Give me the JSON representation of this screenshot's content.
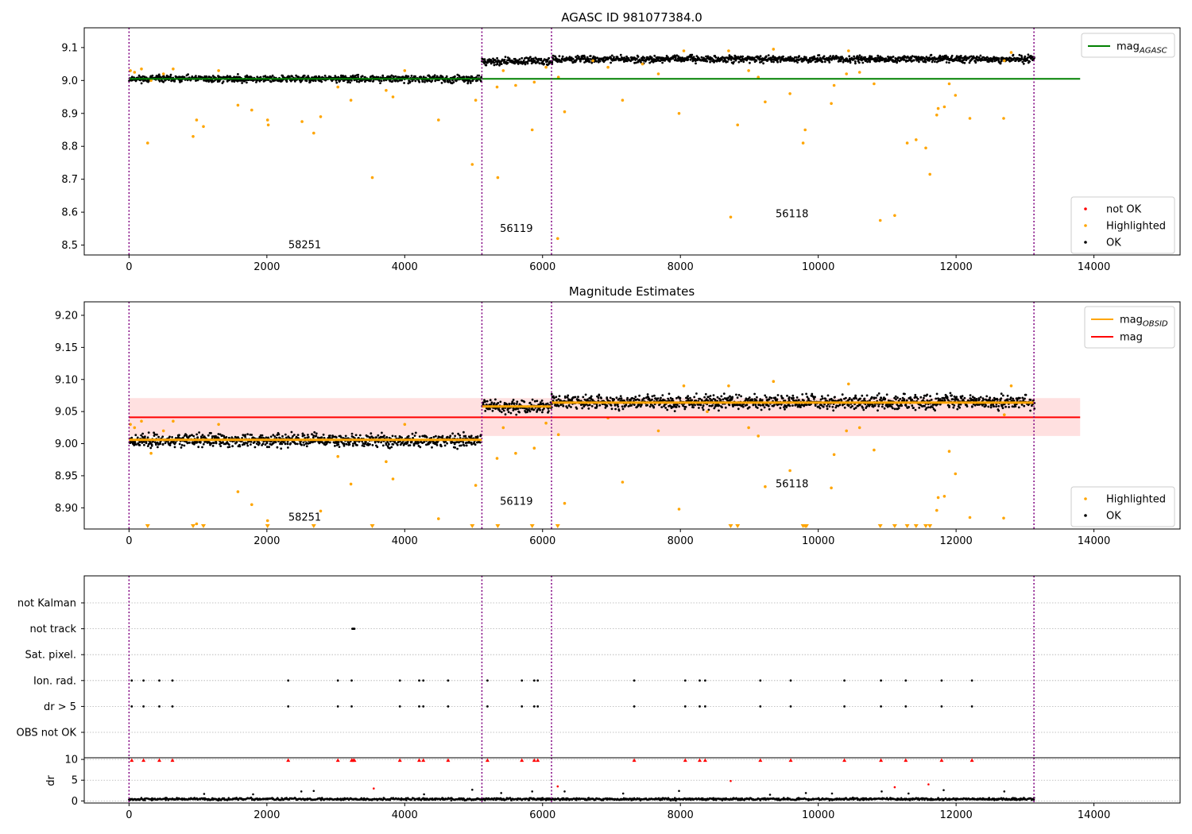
{
  "colors": {
    "ok": "#000000",
    "not_ok": "#ff0000",
    "highlighted": "#ffa500",
    "mag_agasc": "#008000",
    "mag_obsid": "#ffa500",
    "mag": "#ff0000",
    "mag_band": "#ffcccc",
    "obsid_boundary": "#800080",
    "grid": "#b0b0b0"
  },
  "chart_data": [
    {
      "id": "top",
      "type": "scatter",
      "title": "AGASC ID 981077384.0",
      "xlim": [
        -650,
        15250
      ],
      "ylim": [
        8.47,
        9.16
      ],
      "xticks": [
        0,
        2000,
        4000,
        6000,
        8000,
        10000,
        12000,
        14000
      ],
      "yticks": [
        8.5,
        8.6,
        8.7,
        8.8,
        8.9,
        9.0,
        9.1
      ],
      "obsid_boundaries": [
        0,
        5120,
        6130,
        13130
      ],
      "obsid_labels": [
        {
          "text": "58251",
          "x": 2550,
          "y": 8.49
        },
        {
          "text": "56119",
          "x": 5620,
          "y": 8.54
        },
        {
          "text": "56118",
          "x": 9620,
          "y": 8.585
        }
      ],
      "ok_bands": [
        {
          "x0": 0,
          "x1": 5100,
          "center": 9.005,
          "spread": 0.012,
          "step": 12
        },
        {
          "x0": 5120,
          "x1": 6130,
          "center": 9.058,
          "spread": 0.012,
          "step": 12
        },
        {
          "x0": 6130,
          "x1": 13130,
          "center": 9.065,
          "spread": 0.012,
          "step": 12
        }
      ],
      "mag_agasc_line": {
        "value": 9.005,
        "x0": 0,
        "x1": 13800
      },
      "highlighted": [
        [
          20,
          9.03
        ],
        [
          80,
          9.025
        ],
        [
          180,
          9.035
        ],
        [
          270,
          8.81
        ],
        [
          320,
          9.0
        ],
        [
          500,
          9.02
        ],
        [
          640,
          9.035
        ],
        [
          930,
          8.83
        ],
        [
          980,
          8.88
        ],
        [
          1080,
          8.86
        ],
        [
          1300,
          9.03
        ],
        [
          1580,
          8.925
        ],
        [
          1780,
          8.91
        ],
        [
          2010,
          8.88
        ],
        [
          2020,
          8.865
        ],
        [
          2510,
          8.875
        ],
        [
          2680,
          8.84
        ],
        [
          2780,
          8.89
        ],
        [
          3030,
          8.98
        ],
        [
          3220,
          8.94
        ],
        [
          3530,
          8.705
        ],
        [
          3730,
          8.97
        ],
        [
          3830,
          8.95
        ],
        [
          4000,
          9.03
        ],
        [
          4490,
          8.88
        ],
        [
          4980,
          8.745
        ],
        [
          5030,
          8.94
        ],
        [
          5340,
          8.98
        ],
        [
          5350,
          8.705
        ],
        [
          5430,
          9.03
        ],
        [
          5610,
          8.985
        ],
        [
          5850,
          8.85
        ],
        [
          5880,
          8.995
        ],
        [
          6050,
          9.04
        ],
        [
          6220,
          8.52
        ],
        [
          6230,
          9.01
        ],
        [
          6320,
          8.905
        ],
        [
          6730,
          9.06
        ],
        [
          7160,
          8.94
        ],
        [
          7450,
          9.05
        ],
        [
          7980,
          8.9
        ],
        [
          8730,
          8.585
        ],
        [
          8830,
          8.865
        ],
        [
          8990,
          9.03
        ],
        [
          9130,
          9.01
        ],
        [
          9230,
          8.935
        ],
        [
          9590,
          8.96
        ],
        [
          9780,
          8.81
        ],
        [
          9810,
          8.85
        ],
        [
          10190,
          8.93
        ],
        [
          10230,
          8.985
        ],
        [
          10410,
          9.02
        ],
        [
          10600,
          9.025
        ],
        [
          10810,
          8.99
        ],
        [
          10900,
          8.575
        ],
        [
          11110,
          8.59
        ],
        [
          11290,
          8.81
        ],
        [
          11420,
          8.82
        ],
        [
          11560,
          8.795
        ],
        [
          11620,
          8.715
        ],
        [
          11720,
          8.895
        ],
        [
          11740,
          8.915
        ],
        [
          11830,
          8.92
        ],
        [
          11900,
          8.99
        ],
        [
          11990,
          8.955
        ],
        [
          12200,
          8.885
        ],
        [
          12690,
          8.885
        ],
        [
          12700,
          9.06
        ],
        [
          12800,
          9.085
        ],
        [
          10440,
          9.09
        ],
        [
          9350,
          9.095
        ],
        [
          8700,
          9.09
        ],
        [
          8050,
          9.09
        ],
        [
          6950,
          9.04
        ],
        [
          7680,
          9.02
        ]
      ],
      "legend_lines": [
        {
          "label": "mag",
          "sub": "AGASC",
          "color_key": "mag_agasc"
        }
      ],
      "legend_points": [
        {
          "label": "not OK",
          "color_key": "not_ok"
        },
        {
          "label": "Highlighted",
          "color_key": "highlighted"
        },
        {
          "label": "OK",
          "color_key": "ok"
        }
      ]
    },
    {
      "id": "middle",
      "type": "scatter",
      "title": "Magnitude Estimates",
      "xlim": [
        -650,
        15250
      ],
      "ylim": [
        8.867,
        9.221
      ],
      "xticks": [
        0,
        2000,
        4000,
        6000,
        8000,
        10000,
        12000,
        14000
      ],
      "yticks": [
        8.9,
        8.95,
        9.0,
        9.05,
        9.1,
        9.15,
        9.2
      ],
      "obsid_boundaries": [
        0,
        5120,
        6130,
        13130
      ],
      "obsid_labels": [
        {
          "text": "58251",
          "x": 2550,
          "y": 8.88
        },
        {
          "text": "56119",
          "x": 5620,
          "y": 8.905
        },
        {
          "text": "56118",
          "x": 9620,
          "y": 8.932
        }
      ],
      "mag_band": {
        "low": 9.012,
        "high": 9.071,
        "x0": 0,
        "x1": 13800
      },
      "mag_line": {
        "value": 9.041,
        "x0": 0,
        "x1": 13800
      },
      "mag_obsid_segments": [
        {
          "x0": 0,
          "x1": 5120,
          "value": 9.006
        },
        {
          "x0": 5120,
          "x1": 6130,
          "value": 9.058
        },
        {
          "x0": 6130,
          "x1": 13130,
          "value": 9.064
        }
      ],
      "ok_bands": [
        {
          "x0": 0,
          "x1": 5100,
          "center": 9.005,
          "spread": 0.012,
          "step": 12
        },
        {
          "x0": 5120,
          "x1": 6130,
          "center": 9.058,
          "spread": 0.013,
          "step": 12
        },
        {
          "x0": 6130,
          "x1": 13130,
          "center": 9.065,
          "spread": 0.013,
          "step": 12
        }
      ],
      "highlighted": [
        [
          20,
          9.03
        ],
        [
          80,
          9.025
        ],
        [
          180,
          9.035
        ],
        [
          320,
          8.985
        ],
        [
          500,
          9.02
        ],
        [
          640,
          9.035
        ],
        [
          980,
          8.875
        ],
        [
          1300,
          9.03
        ],
        [
          1580,
          8.925
        ],
        [
          1780,
          8.905
        ],
        [
          2010,
          8.88
        ],
        [
          2780,
          8.895
        ],
        [
          3030,
          8.98
        ],
        [
          3220,
          8.937
        ],
        [
          3730,
          8.972
        ],
        [
          3830,
          8.945
        ],
        [
          4000,
          9.03
        ],
        [
          4490,
          8.883
        ],
        [
          5030,
          8.935
        ],
        [
          5340,
          8.977
        ],
        [
          5430,
          9.025
        ],
        [
          5610,
          8.985
        ],
        [
          5880,
          8.993
        ],
        [
          6050,
          9.032
        ],
        [
          6230,
          9.014
        ],
        [
          6320,
          8.907
        ],
        [
          7160,
          8.94
        ],
        [
          7680,
          9.02
        ],
        [
          7980,
          8.898
        ],
        [
          8390,
          9.05
        ],
        [
          8990,
          9.025
        ],
        [
          9130,
          9.012
        ],
        [
          9230,
          8.933
        ],
        [
          9590,
          8.958
        ],
        [
          10190,
          8.931
        ],
        [
          10230,
          8.983
        ],
        [
          10410,
          9.02
        ],
        [
          10600,
          9.025
        ],
        [
          10810,
          8.99
        ],
        [
          11720,
          8.896
        ],
        [
          11740,
          8.916
        ],
        [
          11830,
          8.918
        ],
        [
          11900,
          8.988
        ],
        [
          11990,
          8.953
        ],
        [
          12200,
          8.885
        ],
        [
          12690,
          8.884
        ],
        [
          12700,
          9.045
        ],
        [
          12800,
          9.09
        ],
        [
          10440,
          9.093
        ],
        [
          9350,
          9.097
        ],
        [
          8700,
          9.09
        ],
        [
          8050,
          9.09
        ],
        [
          6950,
          9.04
        ]
      ],
      "clipped_below_x": [
        270,
        930,
        1080,
        2010,
        2680,
        3530,
        4980,
        5350,
        5850,
        6220,
        8730,
        8830,
        9780,
        9810,
        9830,
        10900,
        11110,
        11290,
        11420,
        11560,
        11620
      ],
      "legend_lines": [
        {
          "label": "mag",
          "sub": "OBSID",
          "color_key": "mag_obsid"
        },
        {
          "label": "mag",
          "sub": "",
          "color_key": "mag"
        }
      ],
      "legend_points": [
        {
          "label": "Highlighted",
          "color_key": "highlighted"
        },
        {
          "label": "OK",
          "color_key": "ok"
        }
      ]
    },
    {
      "id": "flags",
      "type": "scatter",
      "xlim": [
        -650,
        15250
      ],
      "categories": [
        "not Kalman",
        "not track",
        "Sat. pixel.",
        "Ion. rad.",
        "dr > 5",
        "OBS not OK"
      ],
      "obsid_boundaries": [
        0,
        5120,
        6130,
        13130
      ],
      "flag_points": {
        "not track": [
          3240,
          3250,
          3260,
          3270
        ],
        "Ion. rad.": [
          40,
          210,
          440,
          630,
          2310,
          3030,
          3230,
          3930,
          4210,
          4270,
          4630,
          5200,
          5700,
          5880,
          5930,
          7330,
          8070,
          8280,
          8360,
          9160,
          9600,
          10380,
          10910,
          11270,
          11790,
          12230
        ],
        "dr > 5": [
          40,
          210,
          440,
          630,
          2310,
          3030,
          3230,
          3930,
          4210,
          4270,
          4630,
          5200,
          5700,
          5880,
          5930,
          7330,
          8070,
          8280,
          8360,
          9160,
          9600,
          10380,
          10910,
          11270,
          11790,
          12230
        ]
      }
    },
    {
      "id": "dr",
      "type": "scatter",
      "ylabel": "dr",
      "xlim": [
        -650,
        15250
      ],
      "ylim": [
        -0.5,
        10.4
      ],
      "xticks": [
        0,
        2000,
        4000,
        6000,
        8000,
        10000,
        12000,
        14000
      ],
      "yticks": [
        0,
        5,
        10
      ],
      "obsid_boundaries": [
        0,
        5120,
        6130,
        13130
      ],
      "dr_band": {
        "x0": 0,
        "x1": 13130,
        "center": 0.45,
        "spread": 0.4,
        "step": 10
      },
      "dr_outliers_ok": [
        [
          1090,
          1.7
        ],
        [
          1800,
          1.6
        ],
        [
          2500,
          2.3
        ],
        [
          2680,
          2.4
        ],
        [
          4280,
          1.6
        ],
        [
          4980,
          2.7
        ],
        [
          5400,
          1.9
        ],
        [
          5850,
          2.3
        ],
        [
          6320,
          2.3
        ],
        [
          7170,
          1.8
        ],
        [
          7980,
          2.4
        ],
        [
          9820,
          1.9
        ],
        [
          10200,
          1.8
        ],
        [
          10920,
          2.3
        ],
        [
          11310,
          1.8
        ],
        [
          11820,
          2.6
        ],
        [
          12700,
          2.3
        ],
        [
          9300,
          1.5
        ]
      ],
      "dr_outliers_notok": [
        [
          3550,
          3.0
        ],
        [
          6220,
          3.5
        ],
        [
          8730,
          4.8
        ],
        [
          11110,
          3.3
        ],
        [
          11600,
          4.0
        ]
      ],
      "dr_capped_x": [
        40,
        210,
        440,
        630,
        2310,
        3030,
        3230,
        3250,
        3270,
        3930,
        4210,
        4270,
        4630,
        5200,
        5700,
        5880,
        5930,
        7330,
        8070,
        8280,
        8360,
        9160,
        9600,
        10380,
        10910,
        11270,
        11790,
        12230
      ]
    }
  ]
}
